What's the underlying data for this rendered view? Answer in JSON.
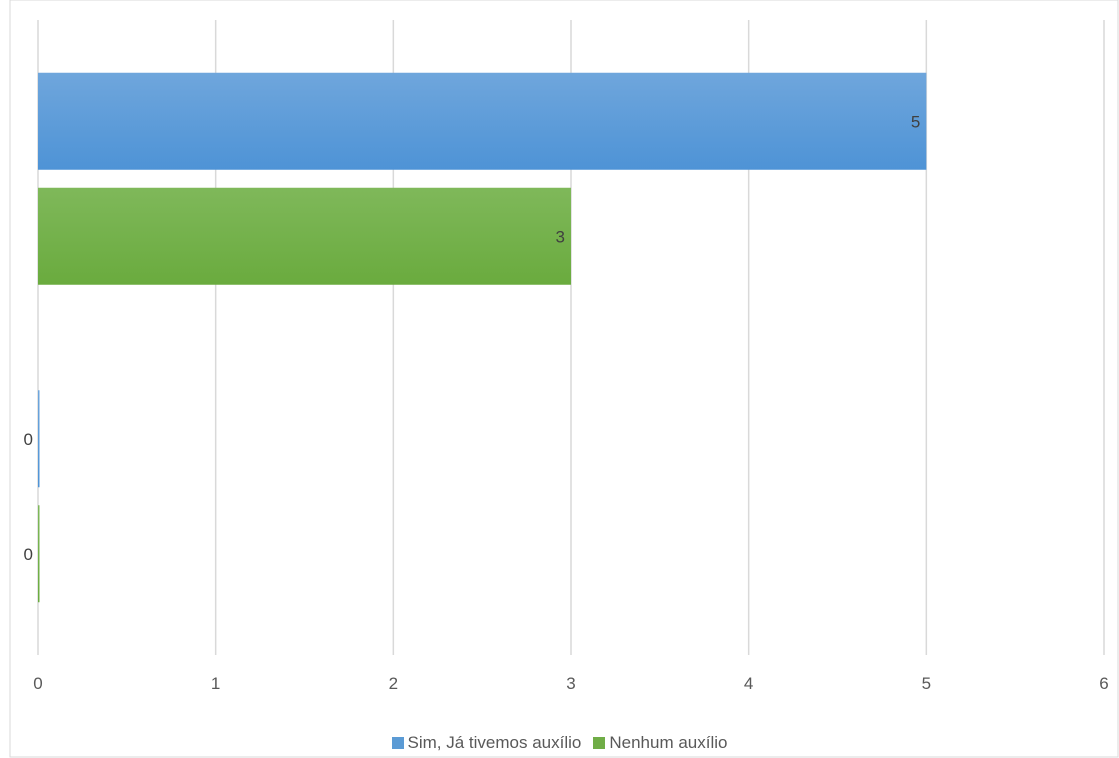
{
  "chart_data": {
    "type": "bar",
    "orientation": "horizontal",
    "title": "",
    "xlabel": "",
    "ylabel": "",
    "xlim": [
      0,
      6
    ],
    "xticks": [
      0,
      1,
      2,
      3,
      4,
      5,
      6
    ],
    "grid": true,
    "legend_position": "bottom",
    "categories": [
      "",
      ""
    ],
    "series": [
      {
        "name": "Sim, Já tivemos auxílio",
        "color": "#5b9bd5",
        "values": [
          0,
          5
        ]
      },
      {
        "name": "Nenhum auxílio",
        "color": "#70ad47",
        "values": [
          0,
          3
        ]
      }
    ]
  }
}
